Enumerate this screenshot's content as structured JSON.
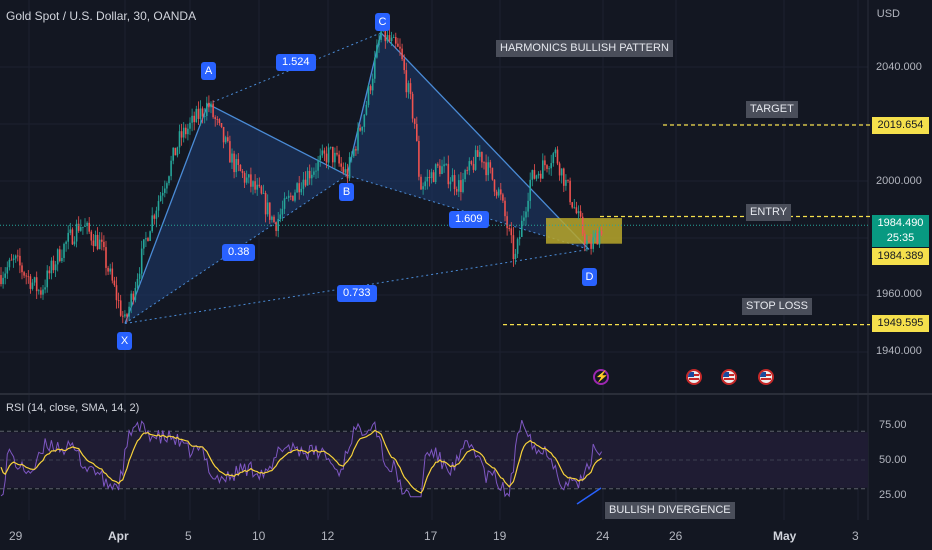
{
  "title": "Gold Spot / U.S. Dollar, 30, OANDA",
  "currency": "USD",
  "y_axis_labels": [
    "2040.000",
    "2000.000",
    "1960.000",
    "1940.000"
  ],
  "rsi_axis_labels": [
    "75.00",
    "50.00",
    "25.00"
  ],
  "x_axis_labels": [
    "29",
    "Apr",
    "5",
    "10",
    "12",
    "17",
    "19",
    "24",
    "26",
    "May",
    "3"
  ],
  "price_tags": {
    "target": "2019.654",
    "current": "1984.490",
    "countdown": "25:35",
    "entry": "1984.389",
    "stop": "1949.595"
  },
  "notes": {
    "pattern": "HARMONICS BULLISH PATTERN",
    "target": "TARGET",
    "entry": "ENTRY",
    "stop": "STOP LOSS",
    "divergence": "BULLISH DIVERGENCE"
  },
  "rsi_title": "RSI (14, close, SMA, 14, 2)",
  "pattern_points": {
    "X": "X",
    "A": "A",
    "B": "B",
    "C": "C",
    "D": "D"
  },
  "ratios": {
    "ab": "0.38",
    "xd": "0.733",
    "ac": "1.524",
    "bd": "1.609"
  },
  "colors": {
    "background": "#131722",
    "up": "#26a69a",
    "down": "#ef5350",
    "pattern_fill": "#1e3a6e",
    "pattern_line": "#4a8bd6",
    "label_blue": "#2962ff",
    "price_tag": "#f5e04c",
    "current_tag": "#089981",
    "rsi": "#7e57c2",
    "rsi_ma": "#f7d23a",
    "zone": "#b8a72a"
  },
  "icons": [
    "lightning-icon",
    "us-flag-icon"
  ],
  "chart_data": {
    "type": "line",
    "title": "Gold Spot / U.S. Dollar, 30, OANDA",
    "ylim": [
      1928,
      2055
    ],
    "pattern": {
      "X": {
        "date": "Apr 1",
        "price": 1950
      },
      "A": {
        "date": "Apr 6",
        "price": 2027
      },
      "B": {
        "date": "Apr 12",
        "price": 2002
      },
      "C": {
        "date": "Apr 15",
        "price": 2052
      },
      "D": {
        "date": "Apr 23",
        "price": 1976
      }
    },
    "levels": {
      "target": 2019.654,
      "entry": 1984.389,
      "stop": 1949.595,
      "current": 1984.49
    },
    "rsi": {
      "ylim": [
        0,
        100
      ],
      "bands": [
        70,
        30
      ],
      "mid": 50
    }
  }
}
